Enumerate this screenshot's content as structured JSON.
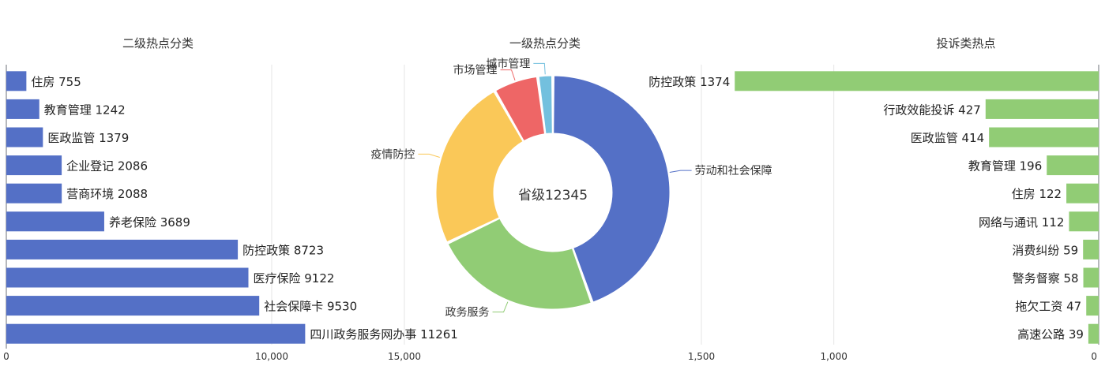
{
  "chart_data": [
    {
      "type": "bar",
      "orientation": "horizontal",
      "title": "二级热点分类",
      "categories": [
        "住房",
        "教育管理",
        "医政监管",
        "企业登记",
        "营商环境",
        "养老保险",
        "防控政策",
        "医疗保险",
        "社会保障卡",
        "四川政务服务网办事"
      ],
      "values": [
        755,
        1242,
        1379,
        2086,
        2088,
        3689,
        8723,
        9122,
        9530,
        11261
      ],
      "xlim": [
        0,
        15000
      ],
      "xticks": [
        "0",
        "10,000",
        "15,000"
      ],
      "color": "#5470c6",
      "grid": true
    },
    {
      "type": "pie",
      "title": "一级热点分类",
      "center_label": "省级12345",
      "slices": [
        {
          "label": "劳动和社会保障",
          "value": 4300,
          "color": "#5470c6"
        },
        {
          "label": "政务服务",
          "value": 2250,
          "color": "#91cc75"
        },
        {
          "label": "疫情防控",
          "value": 2300,
          "color": "#fac858"
        },
        {
          "label": "市场管理",
          "value": 600,
          "color": "#ee6666"
        },
        {
          "label": "城市管理",
          "value": 200,
          "color": "#73c0de"
        }
      ]
    },
    {
      "type": "bar",
      "orientation": "horizontal",
      "reversed": true,
      "title": "投诉类热点",
      "categories": [
        "防控政策",
        "行政效能投诉",
        "医政监管",
        "教育管理",
        "住房",
        "网络与通讯",
        "消费纠纷",
        "警务督察",
        "拖欠工资",
        "高速公路"
      ],
      "values": [
        1374,
        427,
        414,
        196,
        122,
        112,
        59,
        58,
        47,
        39
      ],
      "xlim": [
        0,
        1500
      ],
      "xticks": [
        "1,500",
        "1,000",
        "0"
      ],
      "color": "#91cc75",
      "grid": true
    }
  ]
}
